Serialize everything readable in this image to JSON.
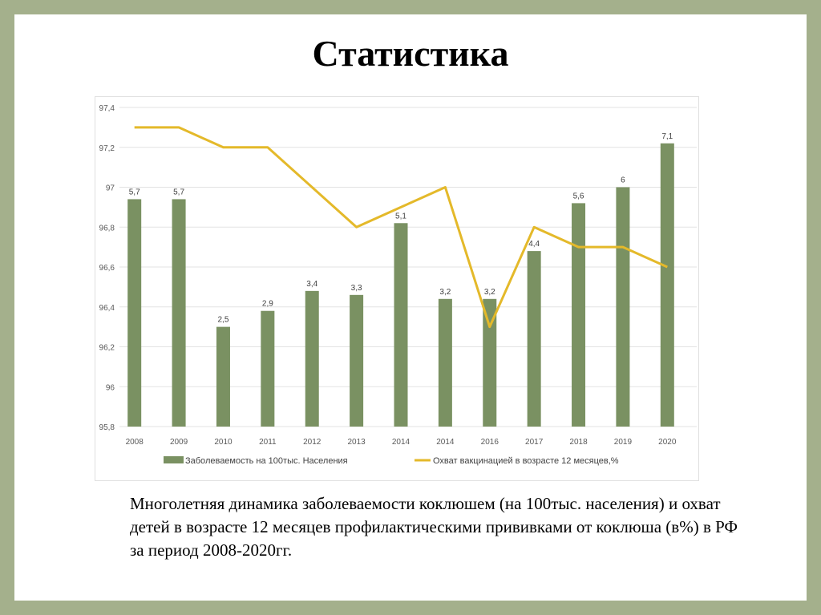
{
  "title": "Статистика",
  "caption": "Многолетняя динамика заболеваемости коклюшем (на 100тыс. населения) и охват детей в возрасте 12 месяцев профилактическими прививками от коклюша (в%) в РФ за период 2008-2020гг.",
  "chart_data": {
    "type": "bar+line",
    "categories": [
      "2008",
      "2009",
      "2010",
      "2011",
      "2012",
      "2013",
      "2014",
      "2014",
      "2016",
      "2017",
      "2018",
      "2019",
      "2020"
    ],
    "series": [
      {
        "name": "Заболеваемость на 100тыс. Населения",
        "type": "bar",
        "axis": "right",
        "color": "#7a9162",
        "values": [
          5.7,
          5.7,
          2.5,
          2.9,
          3.4,
          3.3,
          5.1,
          3.2,
          3.2,
          4.4,
          5.6,
          6,
          7.1
        ],
        "labels": [
          "5,7",
          "5,7",
          "2,5",
          "2,9",
          "3,4",
          "3,3",
          "5,1",
          "3,2",
          "3,2",
          "4,4",
          "5,6",
          "6",
          "7,1"
        ]
      },
      {
        "name": "Охват вакцинацией в возрасте 12 месяцев,%",
        "type": "line",
        "axis": "left",
        "color": "#e4b92a",
        "values": [
          97.3,
          97.3,
          97.2,
          97.2,
          97.0,
          96.8,
          96.9,
          97.0,
          96.3,
          96.8,
          96.7,
          96.7,
          96.6
        ]
      }
    ],
    "left_axis": {
      "range": [
        95.8,
        97.4
      ],
      "ticks": [
        "95,8",
        "96",
        "96,2",
        "96,4",
        "96,6",
        "96,8",
        "97",
        "97,2",
        "97,4"
      ]
    },
    "right_axis": {
      "range": [
        0,
        8
      ],
      "ticks": [
        "0",
        "1",
        "2",
        "3",
        "4",
        "5",
        "6",
        "7",
        "8"
      ]
    },
    "grid": true,
    "legend": "bottom"
  }
}
